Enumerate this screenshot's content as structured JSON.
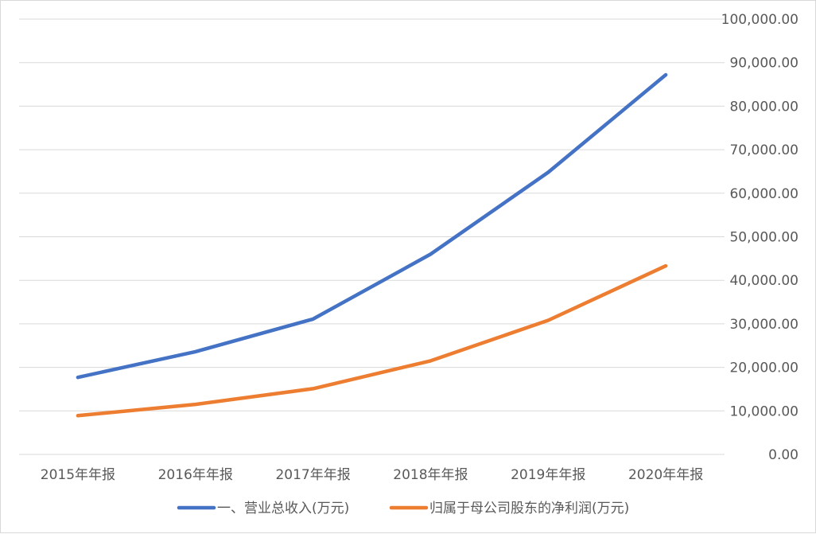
{
  "chart_data": {
    "type": "line",
    "title": "",
    "xlabel": "",
    "ylabel": "",
    "categories": [
      "2015年年报",
      "2016年年报",
      "2017年年报",
      "2018年年报",
      "2019年年报",
      "2020年年报"
    ],
    "series": [
      {
        "name": "一、营业总收入(万元)",
        "color": "#4472c4",
        "values": [
          17700,
          23600,
          31100,
          46000,
          64800,
          87200
        ]
      },
      {
        "name": "归属于母公司股东的净利润(万元)",
        "color": "#ed7d31",
        "values": [
          8900,
          11500,
          15100,
          21500,
          30800,
          43300
        ]
      }
    ],
    "ylim": [
      0,
      100000
    ],
    "yticks": [
      0,
      10000,
      20000,
      30000,
      40000,
      50000,
      60000,
      70000,
      80000,
      90000,
      100000
    ],
    "ytick_labels": [
      "0.00",
      "10,000.00",
      "20,000.00",
      "30,000.00",
      "40,000.00",
      "50,000.00",
      "60,000.00",
      "70,000.00",
      "80,000.00",
      "90,000.00",
      "100,000.00"
    ],
    "y_axis_position": "right",
    "grid": true,
    "legend": "bottom"
  }
}
